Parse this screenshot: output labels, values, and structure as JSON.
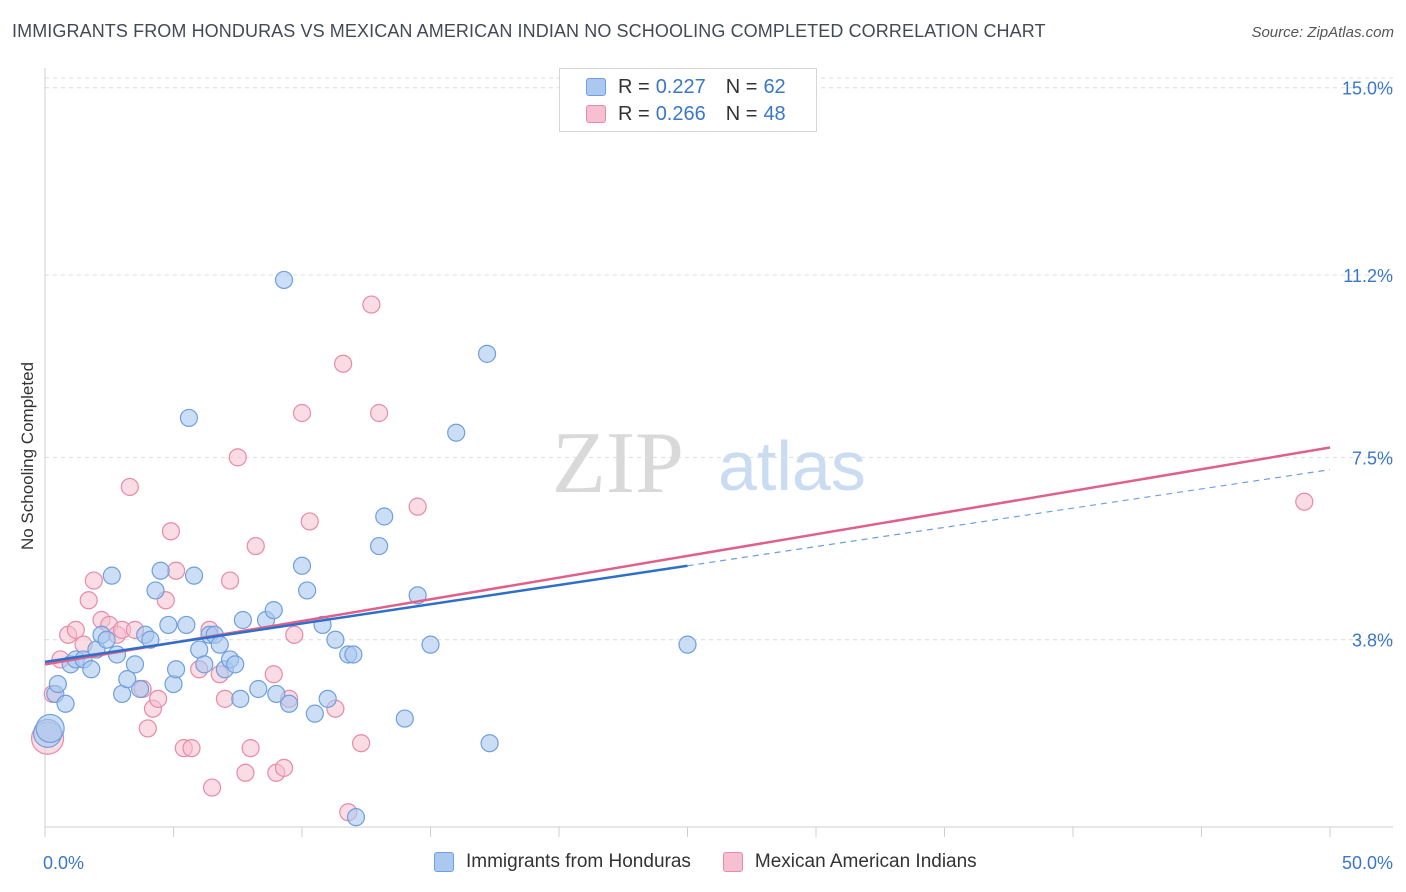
{
  "header": {
    "title": "IMMIGRANTS FROM HONDURAS VS MEXICAN AMERICAN INDIAN NO SCHOOLING COMPLETED CORRELATION CHART",
    "source": "Source: ZipAtlas.com"
  },
  "legend": {
    "series1": {
      "r_label": "R =",
      "r_value": "0.227",
      "n_label": "N =",
      "n_value": "62"
    },
    "series2": {
      "r_label": "R =",
      "r_value": "0.266",
      "n_label": "N =",
      "n_value": "48"
    }
  },
  "bottom_legend": {
    "series1": "Immigrants from Honduras",
    "series2": "Mexican American Indians"
  },
  "watermark": {
    "zip": "ZIP",
    "atlas": "atlas"
  },
  "colors": {
    "blue_fill": "#aac8f0",
    "blue_stroke": "#6f9fdc",
    "blue_line": "#2e6fcc",
    "pink_fill": "#f6c0d0",
    "pink_stroke": "#e88aa8",
    "pink_line": "#e0608a",
    "tick_label": "#3a77c8",
    "grid": "#dcdcdc"
  },
  "chart_data": {
    "type": "scatter",
    "title": "IMMIGRANTS FROM HONDURAS VS MEXICAN AMERICAN INDIAN NO SCHOOLING COMPLETED CORRELATION CHART",
    "xlabel": "",
    "ylabel": "No Schooling Completed",
    "xlim": [
      0,
      50
    ],
    "ylim": [
      0,
      15.4
    ],
    "x_tick_labels": [
      "0.0%",
      "50.0%"
    ],
    "y_ticks": [
      3.8,
      7.5,
      11.2,
      15.0
    ],
    "y_tick_labels": [
      "3.8%",
      "7.5%",
      "11.2%",
      "15.0%"
    ],
    "grid": true,
    "legend_position": "top-center",
    "series": [
      {
        "name": "Immigrants from Honduras",
        "r": 0.227,
        "n": 62,
        "trend": {
          "x": [
            0,
            25
          ],
          "y": [
            3.35,
            5.3
          ]
        },
        "trend_extension": {
          "x": [
            25,
            50
          ],
          "y": [
            5.3,
            7.25
          ]
        },
        "points": [
          [
            0.1,
            1.9
          ],
          [
            0.2,
            2.0
          ],
          [
            0.4,
            2.7
          ],
          [
            0.5,
            2.9
          ],
          [
            0.8,
            2.5
          ],
          [
            1.0,
            3.3
          ],
          [
            1.2,
            3.4
          ],
          [
            1.5,
            3.4
          ],
          [
            1.8,
            3.2
          ],
          [
            2.0,
            3.6
          ],
          [
            2.2,
            3.9
          ],
          [
            2.4,
            3.8
          ],
          [
            2.6,
            5.1
          ],
          [
            2.8,
            3.5
          ],
          [
            3.0,
            2.7
          ],
          [
            3.2,
            3.0
          ],
          [
            3.5,
            3.3
          ],
          [
            3.7,
            2.8
          ],
          [
            3.9,
            3.9
          ],
          [
            4.1,
            3.8
          ],
          [
            4.3,
            4.8
          ],
          [
            4.5,
            5.2
          ],
          [
            4.8,
            4.1
          ],
          [
            5.0,
            2.9
          ],
          [
            5.1,
            3.2
          ],
          [
            5.5,
            4.1
          ],
          [
            5.6,
            8.3
          ],
          [
            5.8,
            5.1
          ],
          [
            6.0,
            3.6
          ],
          [
            6.2,
            3.3
          ],
          [
            6.4,
            3.9
          ],
          [
            6.6,
            3.9
          ],
          [
            6.8,
            3.7
          ],
          [
            7.0,
            3.2
          ],
          [
            7.2,
            3.4
          ],
          [
            7.4,
            3.3
          ],
          [
            7.6,
            2.6
          ],
          [
            7.7,
            4.2
          ],
          [
            8.3,
            2.8
          ],
          [
            8.6,
            4.2
          ],
          [
            8.9,
            4.4
          ],
          [
            9.0,
            2.7
          ],
          [
            9.3,
            11.1
          ],
          [
            9.5,
            2.5
          ],
          [
            10.0,
            5.3
          ],
          [
            10.2,
            4.8
          ],
          [
            10.5,
            2.3
          ],
          [
            10.8,
            4.1
          ],
          [
            11.0,
            2.6
          ],
          [
            11.3,
            3.8
          ],
          [
            11.8,
            3.5
          ],
          [
            12.0,
            3.5
          ],
          [
            12.1,
            0.2
          ],
          [
            13.0,
            5.7
          ],
          [
            13.2,
            6.3
          ],
          [
            14.0,
            2.2
          ],
          [
            14.5,
            4.7
          ],
          [
            15.0,
            3.7
          ],
          [
            16.0,
            8.0
          ],
          [
            17.2,
            9.6
          ],
          [
            17.3,
            1.7
          ],
          [
            25.0,
            3.7
          ]
        ]
      },
      {
        "name": "Mexican American Indians",
        "r": 0.266,
        "n": 48,
        "trend": {
          "x": [
            0,
            50
          ],
          "y": [
            3.3,
            7.7
          ]
        },
        "points": [
          [
            0.1,
            1.8
          ],
          [
            0.3,
            2.7
          ],
          [
            0.6,
            3.4
          ],
          [
            0.9,
            3.9
          ],
          [
            1.2,
            4.0
          ],
          [
            1.5,
            3.7
          ],
          [
            1.7,
            4.6
          ],
          [
            1.9,
            5.0
          ],
          [
            2.2,
            4.2
          ],
          [
            2.5,
            4.1
          ],
          [
            2.8,
            3.9
          ],
          [
            3.0,
            4.0
          ],
          [
            3.3,
            6.9
          ],
          [
            3.5,
            4.0
          ],
          [
            3.8,
            2.8
          ],
          [
            4.0,
            2.0
          ],
          [
            4.2,
            2.4
          ],
          [
            4.4,
            2.6
          ],
          [
            4.7,
            4.6
          ],
          [
            4.9,
            6.0
          ],
          [
            5.1,
            5.2
          ],
          [
            5.4,
            1.6
          ],
          [
            5.7,
            1.6
          ],
          [
            6.0,
            3.2
          ],
          [
            6.4,
            4.0
          ],
          [
            6.5,
            0.8
          ],
          [
            6.8,
            3.1
          ],
          [
            7.0,
            2.6
          ],
          [
            7.2,
            5.0
          ],
          [
            7.5,
            7.5
          ],
          [
            7.8,
            1.1
          ],
          [
            8.0,
            1.6
          ],
          [
            8.2,
            5.7
          ],
          [
            8.9,
            3.1
          ],
          [
            9.0,
            1.1
          ],
          [
            9.3,
            1.2
          ],
          [
            9.5,
            2.6
          ],
          [
            9.7,
            3.9
          ],
          [
            10.0,
            8.4
          ],
          [
            10.3,
            6.2
          ],
          [
            11.3,
            2.4
          ],
          [
            11.6,
            9.4
          ],
          [
            11.8,
            0.3
          ],
          [
            12.3,
            1.7
          ],
          [
            12.7,
            10.6
          ],
          [
            13.0,
            8.4
          ],
          [
            14.5,
            6.5
          ],
          [
            49.0,
            6.6
          ]
        ]
      }
    ]
  }
}
